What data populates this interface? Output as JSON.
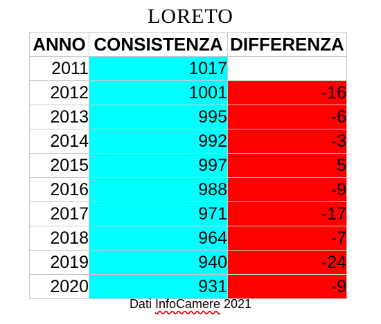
{
  "title": "LORETO",
  "headers": {
    "anno": "ANNO",
    "consistenza": "CONSISTENZA",
    "differenza": "DIFFERENZA"
  },
  "colors": {
    "consistenza_fill": "#00ffff",
    "differenza_fill": "#ff0000"
  },
  "rows": [
    {
      "anno": "2011",
      "consistenza": "1017",
      "differenza": ""
    },
    {
      "anno": "2012",
      "consistenza": "1001",
      "differenza": "-16"
    },
    {
      "anno": "2013",
      "consistenza": "995",
      "differenza": "-6"
    },
    {
      "anno": "2014",
      "consistenza": "992",
      "differenza": "-3"
    },
    {
      "anno": "2015",
      "consistenza": "997",
      "differenza": "5"
    },
    {
      "anno": "2016",
      "consistenza": "988",
      "differenza": "-9"
    },
    {
      "anno": "2017",
      "consistenza": "971",
      "differenza": "-17"
    },
    {
      "anno": "2018",
      "consistenza": "964",
      "differenza": "-7"
    },
    {
      "anno": "2019",
      "consistenza": "940",
      "differenza": "-24"
    },
    {
      "anno": "2020",
      "consistenza": "931",
      "differenza": "-9"
    }
  ],
  "footer": {
    "prefix": "Dati ",
    "source": "InfoCamere",
    "suffix": " 2021"
  }
}
